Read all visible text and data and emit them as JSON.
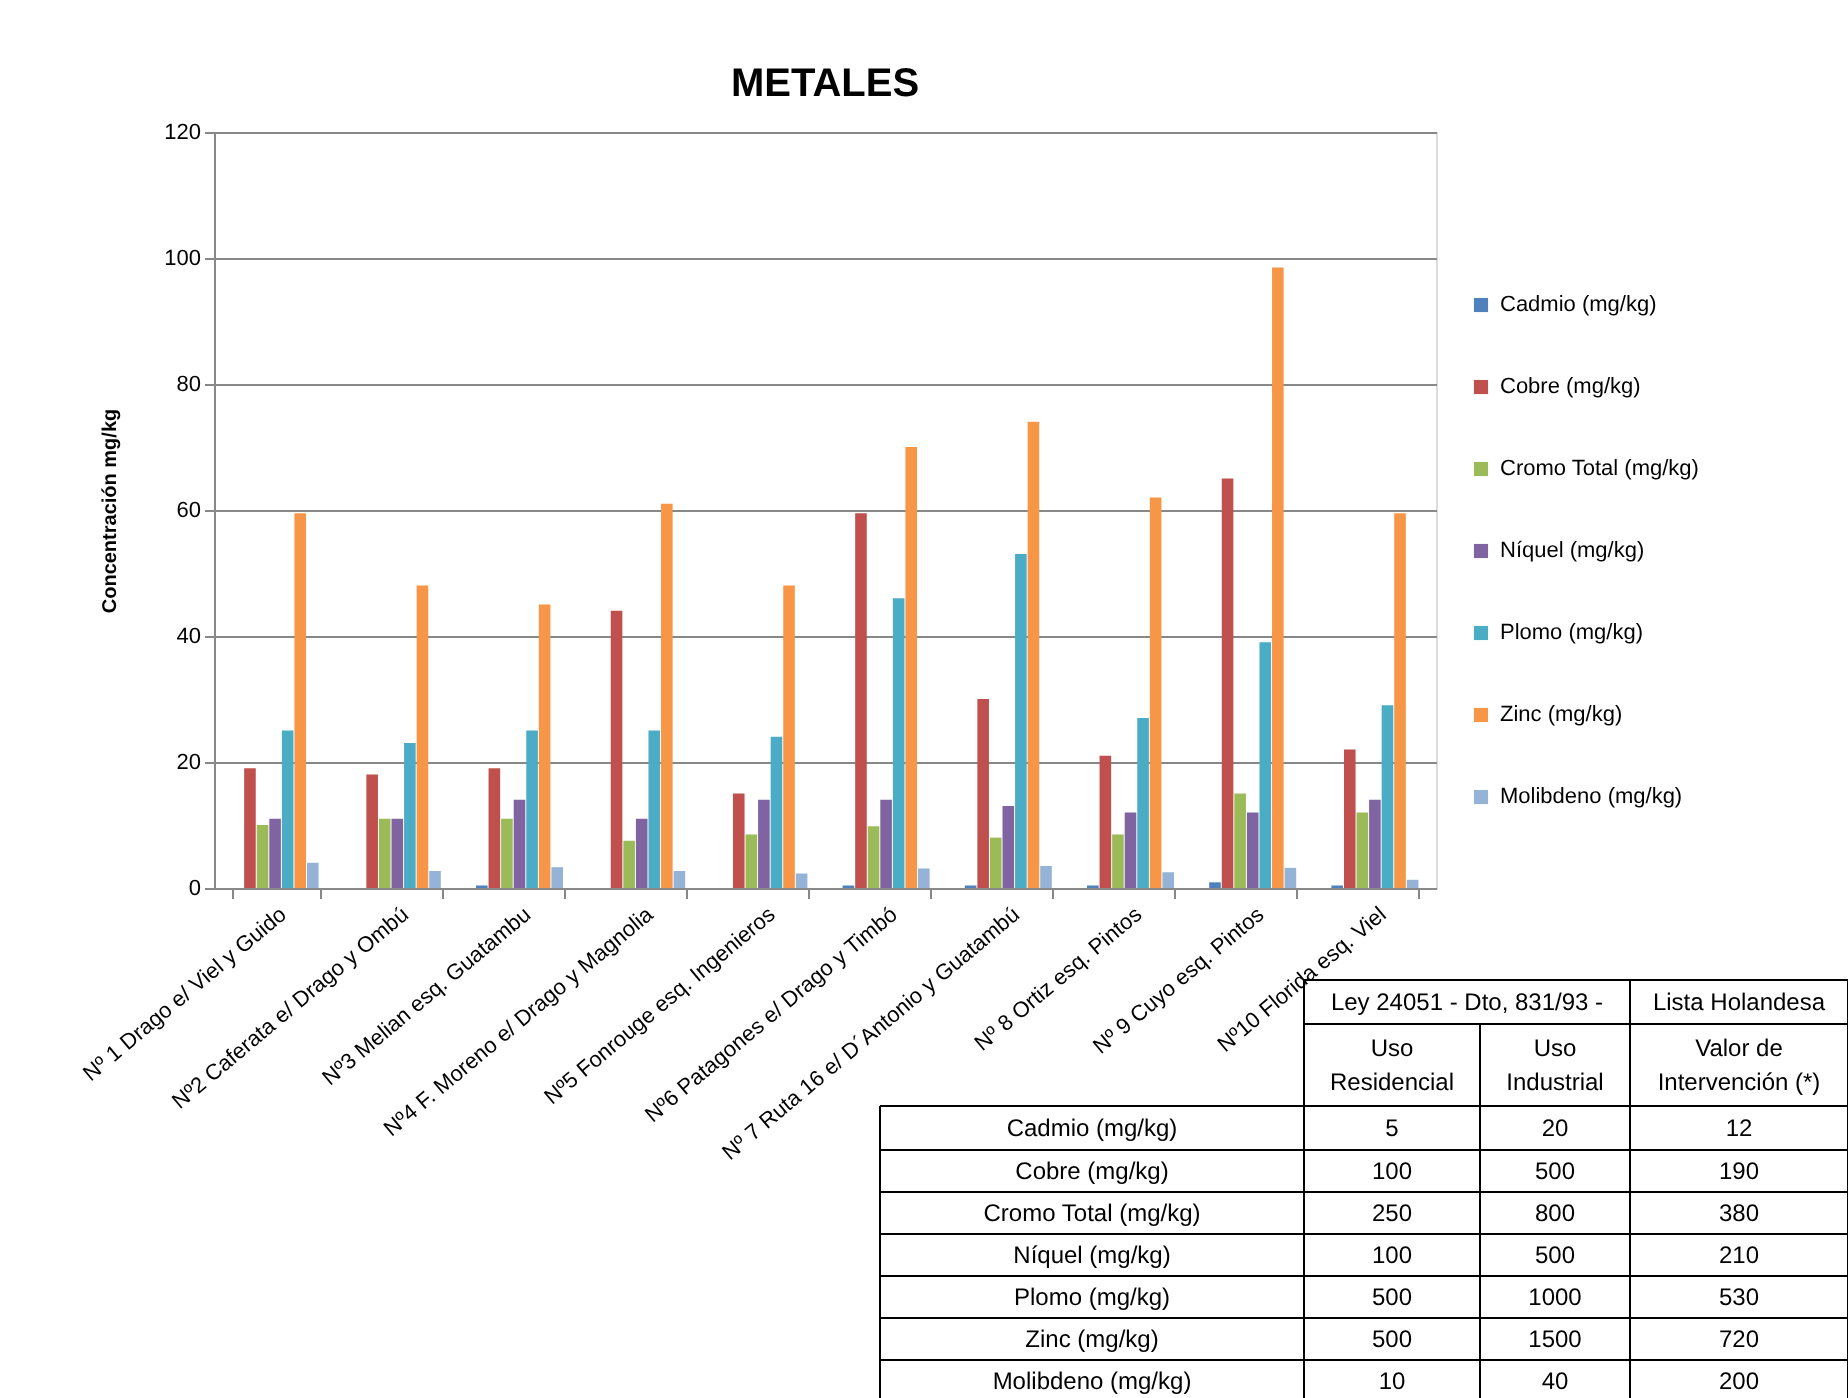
{
  "chart_data": {
    "type": "bar",
    "title": "METALES",
    "ylabel": "Concentración mg/kg",
    "categories": [
      "Nº 1 Drago e/ Viel y Guido",
      "Nº2 Caferata e/ Drago y Ombú",
      "Nº3 Melian esq. Guatambu",
      "Nº4 F. Moreno e/ Drago y Magnolia",
      "Nº5 Fonrouge esq. Ingenieros",
      "Nº6 Patagones e/ Drago y Timbó",
      "Nº 7 Ruta 16 e/ D´Antonio y Guatambú",
      "Nº 8 Ortiz esq. Pintos",
      "Nº 9 Cuyo esq. Pintos",
      "Nº10 Florida esq. Viel"
    ],
    "series": [
      {
        "name": "Cadmio (mg/kg)",
        "color": "#4f81bd",
        "values": [
          0,
          0,
          0.4,
          0,
          0,
          0.4,
          0.4,
          0.4,
          0.9,
          0.4
        ]
      },
      {
        "name": "Cobre (mg/kg)",
        "color": "#c0504d",
        "values": [
          19,
          18,
          19,
          44,
          15,
          59.5,
          30,
          21,
          65,
          22
        ]
      },
      {
        "name": "Cromo Total  (mg/kg)",
        "color": "#9bbb59",
        "values": [
          10,
          11,
          11,
          7.5,
          8.5,
          9.8,
          8,
          8.5,
          15,
          12
        ]
      },
      {
        "name": "Níquel (mg/kg)",
        "color": "#8064a2",
        "values": [
          11,
          11,
          14,
          11,
          14,
          14,
          13,
          12,
          12,
          14
        ]
      },
      {
        "name": "Plomo (mg/kg)",
        "color": "#4bacc6",
        "values": [
          25,
          23,
          25,
          25,
          24,
          46,
          53,
          27,
          39,
          29
        ]
      },
      {
        "name": "Zinc (mg/kg)",
        "color": "#f79646",
        "values": [
          59.5,
          48,
          45,
          61,
          48,
          70,
          74,
          62,
          98.5,
          59.5
        ]
      },
      {
        "name": "Molibdeno (mg/kg)",
        "color": "#95b3d7",
        "values": [
          4,
          2.7,
          3.3,
          2.7,
          2.3,
          3.1,
          3.5,
          2.5,
          3.2,
          1.3
        ]
      }
    ],
    "ylim": [
      0,
      120
    ],
    "yticks": [
      0,
      20,
      40,
      60,
      80,
      100,
      120
    ],
    "grid": "y",
    "legend": "right",
    "annotations": [
      "Ley 24051 - Dto, 831/93 -",
      "Lista Holandesa",
      "Uso\nResidencial",
      "Uso\nIndustrial",
      "Valor de\nIntervención (*)",
      "Cadmio (mg/kg)",
      "5",
      "20",
      "12",
      "Cobre (mg/kg)",
      "100",
      "500",
      "190",
      "Cromo Total (mg/kg)",
      "250",
      "800",
      "380",
      "Níquel (mg/kg)",
      "100",
      "500",
      "210",
      "Plomo (mg/kg)",
      "500",
      "1000",
      "530",
      "Zinc (mg/kg)",
      "500",
      "1500",
      "720",
      "Molibdeno (mg/kg)",
      "10",
      "40",
      "200"
    ]
  }
}
